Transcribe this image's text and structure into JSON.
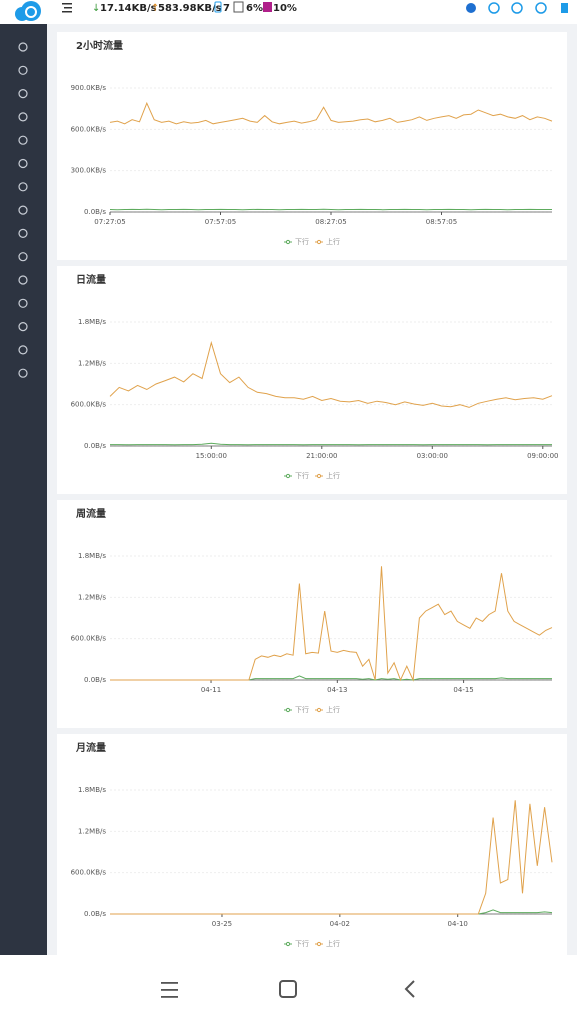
{
  "topbar": {
    "down": "17.14KB/s",
    "up": "583.98KB/s",
    "devices": "7",
    "cpu": "6%",
    "mem": "10%"
  },
  "chart_data": [
    {
      "type": "line",
      "title": "2小时流量",
      "ylim": [
        0,
        900
      ],
      "yticks": [
        {
          "value": 0,
          "label": "0.0B/s"
        },
        {
          "value": 300,
          "label": "300.0KB/s"
        },
        {
          "value": 600,
          "label": "600.0KB/s"
        },
        {
          "value": 900,
          "label": "900.0KB/s"
        }
      ],
      "xlim": [
        0,
        120
      ],
      "xticks": [
        {
          "value": 0,
          "label": "07:27:05"
        },
        {
          "value": 30,
          "label": "07:57:05"
        },
        {
          "value": 60,
          "label": "08:27:05"
        },
        {
          "value": 90,
          "label": "08:57:05"
        }
      ],
      "series": [
        {
          "name": "下行",
          "color": "#5dab5d",
          "values": [
            18,
            17,
            18,
            19,
            18,
            20,
            18,
            17,
            18,
            18,
            19,
            18,
            17,
            18,
            18,
            19,
            18,
            18,
            17,
            18,
            19,
            18,
            18,
            17,
            18,
            18,
            19,
            18,
            18,
            20,
            18,
            17,
            18,
            18,
            19,
            18,
            18,
            17,
            18,
            18,
            19,
            18,
            18,
            17,
            18,
            18,
            19,
            18,
            18,
            17,
            18,
            19,
            18,
            18,
            17,
            18,
            18,
            19,
            18,
            18,
            18
          ]
        },
        {
          "name": "上行",
          "color": "#e0a24c",
          "values": [
            650,
            660,
            640,
            670,
            655,
            790,
            670,
            650,
            660,
            640,
            655,
            645,
            650,
            665,
            640,
            650,
            660,
            670,
            680,
            660,
            650,
            700,
            655,
            640,
            650,
            660,
            645,
            655,
            670,
            760,
            665,
            650,
            655,
            660,
            670,
            675,
            655,
            665,
            680,
            650,
            660,
            670,
            690,
            665,
            680,
            690,
            700,
            680,
            705,
            710,
            740,
            720,
            700,
            710,
            690,
            680,
            700,
            670,
            690,
            680,
            660
          ]
        }
      ]
    },
    {
      "type": "line",
      "title": "日流量",
      "ylim": [
        0,
        1800
      ],
      "yticks": [
        {
          "value": 0,
          "label": "0.0B/s"
        },
        {
          "value": 600,
          "label": "600.0KB/s"
        },
        {
          "value": 1200,
          "label": "1.2MB/s"
        },
        {
          "value": 1800,
          "label": "1.8MB/s"
        }
      ],
      "xlim": [
        0,
        24
      ],
      "xticks": [
        {
          "value": 5.5,
          "label": "15:00:00"
        },
        {
          "value": 11.5,
          "label": "21:00:00"
        },
        {
          "value": 17.5,
          "label": "03:00:00"
        },
        {
          "value": 23.5,
          "label": "09:00:00"
        }
      ],
      "series": [
        {
          "name": "下行",
          "color": "#5dab5d",
          "values": [
            20,
            20,
            19,
            21,
            20,
            20,
            20,
            19,
            20,
            21,
            25,
            40,
            25,
            20,
            20,
            19,
            20,
            20,
            21,
            20,
            20,
            19,
            20,
            20,
            20,
            21,
            20,
            19,
            20,
            20,
            20,
            20,
            21,
            20,
            19,
            20,
            20,
            20,
            21,
            20,
            20,
            19,
            20,
            20,
            20,
            21,
            20,
            20,
            20
          ]
        },
        {
          "name": "上行",
          "color": "#e0a24c",
          "values": [
            720,
            850,
            800,
            880,
            820,
            900,
            950,
            1000,
            930,
            1050,
            980,
            1500,
            1050,
            920,
            1000,
            850,
            780,
            760,
            720,
            700,
            700,
            680,
            720,
            660,
            690,
            650,
            640,
            660,
            620,
            650,
            630,
            600,
            640,
            610,
            590,
            620,
            580,
            570,
            600,
            560,
            620,
            650,
            680,
            700,
            670,
            690,
            700,
            680,
            730
          ]
        }
      ]
    },
    {
      "type": "line",
      "title": "周流量",
      "ylim": [
        0,
        1800
      ],
      "yticks": [
        {
          "value": 0,
          "label": "0.0B/s"
        },
        {
          "value": 600,
          "label": "600.0KB/s"
        },
        {
          "value": 1200,
          "label": "1.2MB/s"
        },
        {
          "value": 1800,
          "label": "1.8MB/s"
        }
      ],
      "xlim": [
        0,
        7
      ],
      "xticks": [
        {
          "value": 1.6,
          "label": "04-11"
        },
        {
          "value": 3.6,
          "label": "04-13"
        },
        {
          "value": 5.6,
          "label": "04-15"
        }
      ],
      "series": [
        {
          "name": "下行",
          "color": "#5dab5d",
          "values": [
            0,
            0,
            0,
            0,
            0,
            0,
            0,
            0,
            0,
            0,
            0,
            0,
            0,
            0,
            0,
            0,
            0,
            0,
            0,
            0,
            0,
            0,
            0,
            20,
            20,
            20,
            20,
            20,
            20,
            20,
            60,
            20,
            20,
            20,
            20,
            20,
            20,
            20,
            20,
            20,
            10,
            20,
            0,
            20,
            10,
            20,
            0,
            10,
            0,
            20,
            20,
            20,
            20,
            20,
            20,
            20,
            20,
            20,
            20,
            20,
            20,
            20,
            30,
            20,
            20,
            20,
            20,
            20,
            20,
            20,
            20
          ]
        },
        {
          "name": "上行",
          "color": "#e0a24c",
          "values": [
            0,
            0,
            0,
            0,
            0,
            0,
            0,
            0,
            0,
            0,
            0,
            0,
            0,
            0,
            0,
            0,
            0,
            0,
            0,
            0,
            0,
            0,
            0,
            300,
            350,
            330,
            360,
            340,
            380,
            360,
            1400,
            380,
            400,
            390,
            1000,
            420,
            400,
            430,
            410,
            400,
            200,
            300,
            0,
            1650,
            100,
            250,
            0,
            200,
            0,
            900,
            1000,
            1050,
            1100,
            950,
            1000,
            850,
            800,
            750,
            900,
            850,
            950,
            1000,
            1550,
            1000,
            850,
            800,
            750,
            700,
            650,
            720,
            760
          ]
        }
      ]
    },
    {
      "type": "line",
      "title": "月流量",
      "ylim": [
        0,
        1800
      ],
      "yticks": [
        {
          "value": 0,
          "label": "0.0B/s"
        },
        {
          "value": 600,
          "label": "600.0KB/s"
        },
        {
          "value": 1200,
          "label": "1.2MB/s"
        },
        {
          "value": 1800,
          "label": "1.8MB/s"
        }
      ],
      "xlim": [
        0,
        30
      ],
      "xticks": [
        {
          "value": 7.6,
          "label": "03-25"
        },
        {
          "value": 15.6,
          "label": "04-02"
        },
        {
          "value": 23.6,
          "label": "04-10"
        }
      ],
      "series": [
        {
          "name": "下行",
          "color": "#5dab5d",
          "values": [
            0,
            0,
            0,
            0,
            0,
            0,
            0,
            0,
            0,
            0,
            0,
            0,
            0,
            0,
            0,
            0,
            0,
            0,
            0,
            0,
            0,
            0,
            0,
            0,
            0,
            0,
            0,
            0,
            0,
            0,
            0,
            0,
            0,
            0,
            0,
            0,
            0,
            0,
            0,
            0,
            0,
            0,
            0,
            0,
            0,
            0,
            0,
            0,
            0,
            0,
            0,
            20,
            60,
            20,
            20,
            20,
            20,
            20,
            20,
            30,
            20
          ]
        },
        {
          "name": "上行",
          "color": "#e0a24c",
          "values": [
            0,
            0,
            0,
            0,
            0,
            0,
            0,
            0,
            0,
            0,
            0,
            0,
            0,
            0,
            0,
            0,
            0,
            0,
            0,
            0,
            0,
            0,
            0,
            0,
            0,
            0,
            0,
            0,
            0,
            0,
            0,
            0,
            0,
            0,
            0,
            0,
            0,
            0,
            0,
            0,
            0,
            0,
            0,
            0,
            0,
            0,
            0,
            0,
            0,
            0,
            0,
            300,
            1400,
            450,
            500,
            1650,
            300,
            1600,
            700,
            1550,
            750
          ]
        }
      ]
    }
  ]
}
